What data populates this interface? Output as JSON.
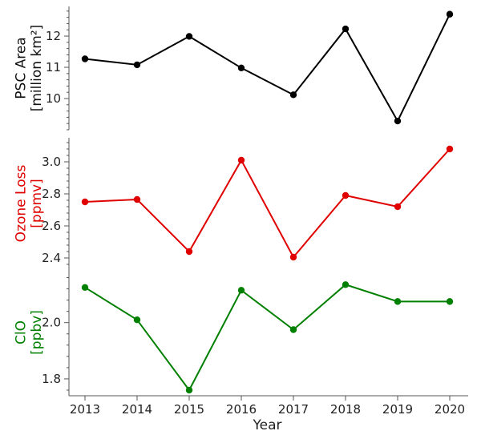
{
  "chart_data": {
    "type": "line",
    "x": [
      2013,
      2014,
      2015,
      2016,
      2017,
      2018,
      2019,
      2020
    ],
    "xlabel": "Year",
    "xticks": [
      "2013",
      "2014",
      "2015",
      "2016",
      "2017",
      "2018",
      "2019",
      "2020"
    ],
    "grid": false,
    "legend": "none",
    "panels": [
      {
        "id": "psc",
        "ylabel_lines": [
          "PSC Area",
          "[million km²]"
        ],
        "ylim": [
          9.0,
          12.95
        ],
        "yticks": [
          10,
          11,
          12
        ],
        "ytick_labels": [
          "10",
          "11",
          "12"
        ],
        "color": "#000000",
        "series": [
          {
            "values": [
              11.27,
              11.08,
              11.99,
              10.98,
              10.12,
              12.23,
              9.28,
              12.7
            ]
          }
        ]
      },
      {
        "id": "ozone",
        "ylabel_lines": [
          "Ozone Loss",
          "[ppmv]"
        ],
        "ylim": [
          2.33,
          3.15
        ],
        "yticks": [
          2.4,
          2.6,
          2.8,
          3.0
        ],
        "ytick_labels": [
          "2.4",
          "2.6",
          "2.8",
          "3.0"
        ],
        "color": "#e00000",
        "series": [
          {
            "values": [
              2.75,
              2.765,
              2.44,
              3.01,
              2.405,
              2.79,
              2.72,
              3.08
            ]
          }
        ]
      },
      {
        "id": "clo",
        "ylabel_lines": [
          "ClO",
          "[ppbv]"
        ],
        "ylim": [
          1.74,
          2.19
        ],
        "yticks": [
          1.8,
          2.0
        ],
        "ytick_labels": [
          "1.8",
          "2.0"
        ],
        "color": "#008000",
        "series": [
          {
            "values": [
              2.125,
              2.01,
              1.76,
              2.115,
              1.975,
              2.135,
              2.075,
              2.075
            ]
          }
        ]
      }
    ]
  }
}
